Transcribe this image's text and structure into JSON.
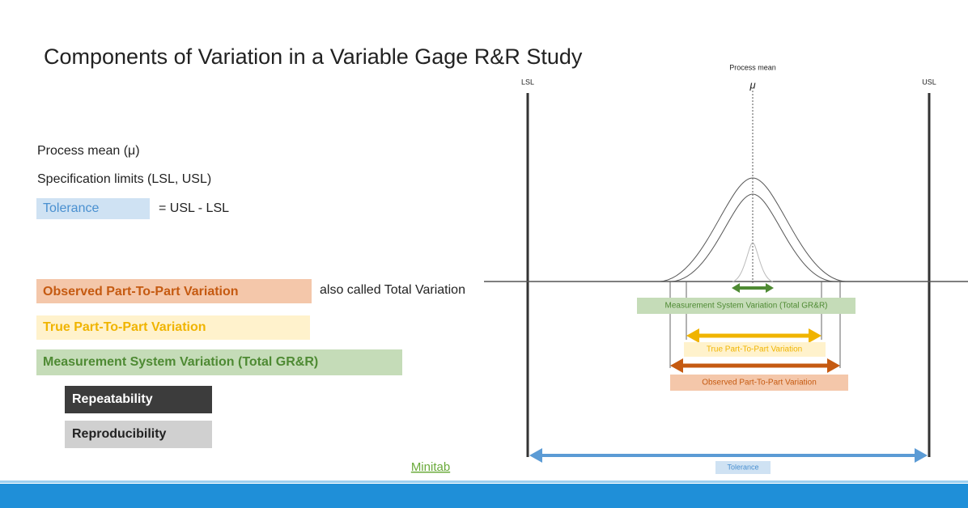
{
  "title": "Components of Variation in a Variable Gage R&R Study",
  "legend": {
    "process_mean": "Process mean (μ)",
    "spec_limits": "Specification limits (LSL, USL)",
    "tolerance": {
      "label": "Tolerance",
      "definition": "= USL - LSL"
    },
    "observed": {
      "label": "Observed Part-To-Part Variation",
      "note": "also called Total Variation"
    },
    "true": "True Part-To-Part Variation",
    "measurement": "Measurement System Variation (Total GR&R)",
    "repeatability": "Repeatability",
    "reproducibility": "Reproducibility"
  },
  "link": "Minitab",
  "diagram": {
    "process_mean": "Process mean",
    "mu": "μ",
    "lsl": "LSL",
    "usl": "USL",
    "measurement": "Measurement System Variation (Total GR&R)",
    "true": "True Part-To-Part Variation",
    "observed": "Observed Part-To-Part Variation",
    "tolerance": "Tolerance"
  }
}
